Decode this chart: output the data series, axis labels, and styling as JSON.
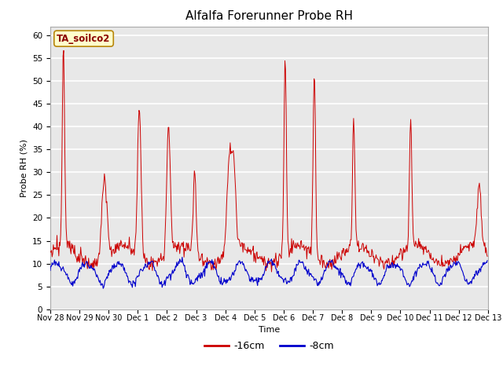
{
  "title": "Alfalfa Forerunner Probe RH",
  "ylabel": "Probe RH (%)",
  "xlabel": "Time",
  "annotation_text": "TA_soilco2",
  "annotation_color": "#8B0000",
  "annotation_bg": "#FFFFCC",
  "annotation_border": "#B8860B",
  "line_16cm_color": "#CC0000",
  "line_8cm_color": "#0000CC",
  "ylim": [
    0,
    62
  ],
  "yticks": [
    0,
    5,
    10,
    15,
    20,
    25,
    30,
    35,
    40,
    45,
    50,
    55,
    60
  ],
  "plot_bg_color": "#E8E8E8",
  "grid_color": "white",
  "title_fontsize": 11,
  "axis_fontsize": 8,
  "tick_fontsize": 7.5,
  "legend_entries": [
    "-16cm",
    "-8cm"
  ]
}
